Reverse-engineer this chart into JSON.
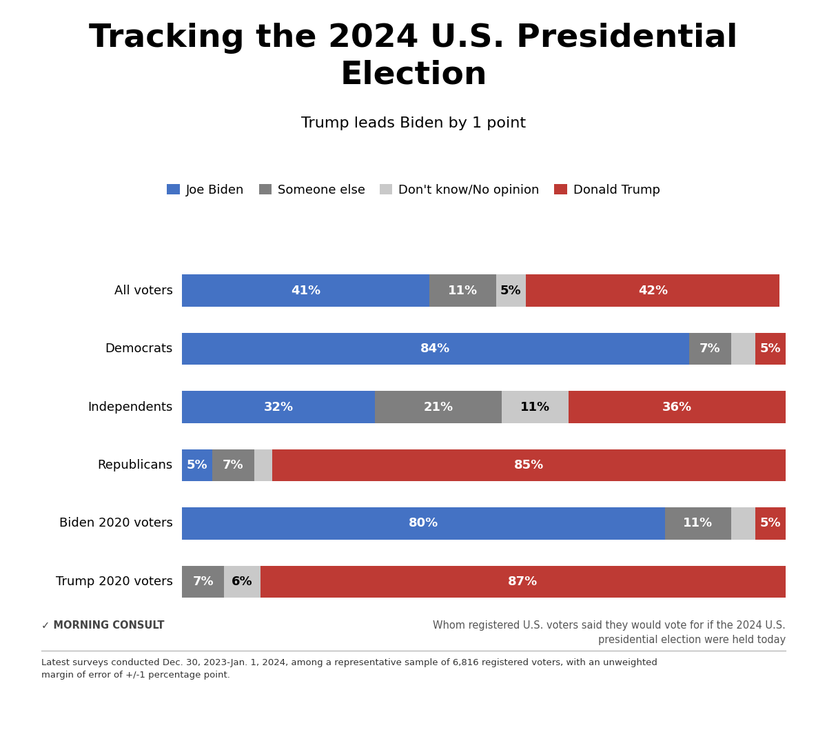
{
  "title": "Tracking the 2024 U.S. Presidential\nElection",
  "subtitle": "Trump leads Biden by 1 point",
  "categories": [
    "All voters",
    "Democrats",
    "Independents",
    "Republicans",
    "Biden 2020 voters",
    "Trump 2020 voters"
  ],
  "biden_vals": [
    41,
    84,
    32,
    5,
    80,
    0
  ],
  "someone_vals": [
    11,
    7,
    21,
    7,
    11,
    7
  ],
  "dontknow_vals": [
    5,
    4,
    11,
    3,
    4,
    6
  ],
  "trump_vals": [
    42,
    5,
    36,
    85,
    5,
    87
  ],
  "biden_color": "#4472C4",
  "someone_color": "#7F7F7F",
  "dontknow_color": "#C9C9C9",
  "trump_color": "#BE3A34",
  "bar_height": 0.55,
  "background_color": "#FFFFFF",
  "legend_labels": [
    "Joe Biden",
    "Someone else",
    "Don't know/No opinion",
    "Donald Trump"
  ],
  "footnote": "Latest surveys conducted Dec. 30, 2023-Jan. 1, 2024, among a representative sample of 6,816 registered voters, with an unweighted\nmargin of error of +/-1 percentage point.",
  "source_right": "Whom registered U.S. voters said they would vote for if the 2024 U.S.\npresidential election were held today",
  "source_left": "MORNING CONSULT"
}
